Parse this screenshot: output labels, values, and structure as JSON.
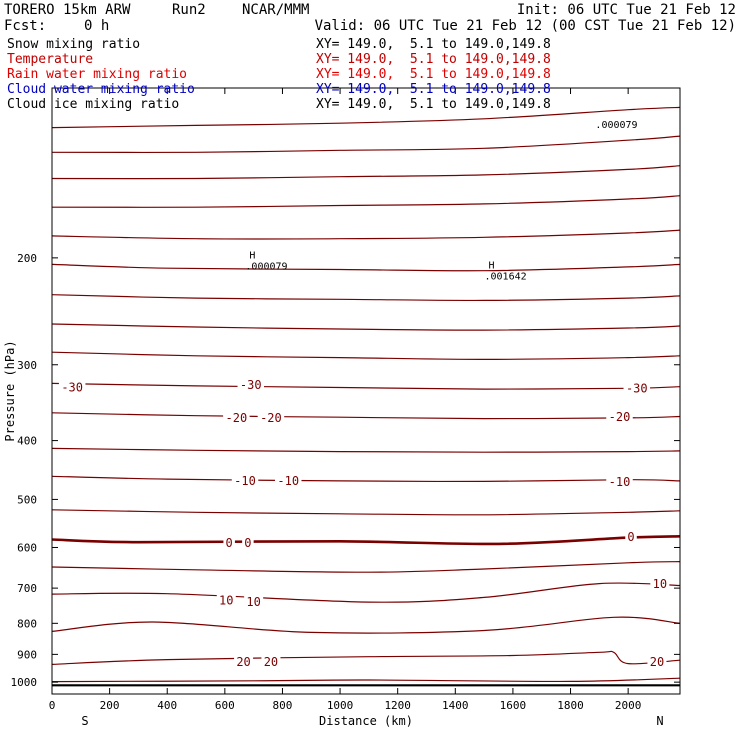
{
  "header": {
    "model": "TORERO 15km ARW",
    "run": "Run2",
    "org": "NCAR/MMM",
    "init": "Init: 06 UTC Tue 21 Feb 12",
    "fcst_label": "Fcst:",
    "fcst_value": "0 h",
    "valid": "Valid: 06 UTC Tue 21 Feb 12 (00 CST Tue 21 Feb 12)"
  },
  "legend": [
    {
      "name": "Snow mixing ratio",
      "xy": "XY= 149.0,  5.1 to 149.0,149.8",
      "color": "#000000"
    },
    {
      "name": "Temperature",
      "xy": "XY= 149.0,  5.1 to 149.0,149.8",
      "color": "#c00000"
    },
    {
      "name": "Rain water mixing ratio",
      "xy": "XY= 149.0,  5.1 to 149.0,149.8",
      "color": "#e00000"
    },
    {
      "name": "Cloud water mixing ratio",
      "xy": "XY= 149.0,  5.1 to 149.0,149.8",
      "color": "#0000c0"
    },
    {
      "name": "Cloud ice mixing ratio",
      "xy": "XY= 149.0,  5.1 to 149.0,149.8",
      "color": "#000000"
    }
  ],
  "colors": {
    "isotherm": "#7a0000",
    "frame": "#000000",
    "ground": "#000000"
  },
  "chart_data": {
    "type": "line",
    "xlabel": "Distance (km)",
    "ylabel": "Pressure (hPa)",
    "x_ticks": [
      0,
      200,
      400,
      600,
      800,
      1000,
      1200,
      1400,
      1600,
      1800,
      2000
    ],
    "y_ticks": [
      200,
      300,
      400,
      500,
      600,
      700,
      800,
      900,
      1000
    ],
    "xlim": [
      0,
      2180
    ],
    "ylim": [
      1046,
      105
    ],
    "y_scale": "log",
    "grid": false,
    "endpoint_labels": {
      "left": "S",
      "right": "N"
    },
    "isotherms": [
      {
        "x": [
          0,
          500,
          1000,
          1500,
          2000,
          2180
        ],
        "p": [
          122,
          121,
          120,
          118,
          114,
          113
        ]
      },
      {
        "x": [
          0,
          500,
          1000,
          1500,
          2000,
          2180
        ],
        "p": [
          134,
          134,
          133,
          132,
          128,
          126
        ]
      },
      {
        "x": [
          0,
          500,
          1000,
          1500,
          2000,
          2180
        ],
        "p": [
          148,
          148,
          147,
          146,
          143,
          141
        ]
      },
      {
        "x": [
          0,
          500,
          1000,
          1500,
          2000,
          2180
        ],
        "p": [
          165,
          165,
          164,
          163,
          160,
          158
        ]
      },
      {
        "x": [
          0,
          500,
          1000,
          1500,
          2000,
          2180
        ],
        "p": [
          184,
          186,
          186,
          185,
          182,
          180
        ]
      },
      {
        "x": [
          0,
          400,
          1000,
          1500,
          2000,
          2180
        ],
        "p": [
          205,
          208,
          209,
          210,
          207,
          205
        ]
      },
      {
        "x": [
          0,
          500,
          1000,
          1500,
          2000,
          2180
        ],
        "p": [
          230,
          233,
          234,
          235,
          233,
          231
        ]
      },
      {
        "x": [
          0,
          500,
          1000,
          1500,
          2000,
          2180
        ],
        "p": [
          257,
          260,
          262,
          263,
          261,
          259
        ]
      },
      {
        "x": [
          0,
          500,
          1000,
          1500,
          2000,
          2180
        ],
        "p": [
          286,
          290,
          292,
          294,
          292,
          290
        ]
      },
      {
        "x": [
          0,
          500,
          1000,
          1500,
          2000,
          2180
        ],
        "p": [
          322,
          325,
          327,
          329,
          328,
          326
        ]
      },
      {
        "x": [
          0,
          500,
          1000,
          1500,
          2000,
          2180
        ],
        "p": [
          360,
          364,
          366,
          368,
          367,
          365
        ]
      },
      {
        "x": [
          0,
          500,
          1000,
          1500,
          2000,
          2180
        ],
        "p": [
          412,
          415,
          417,
          418,
          417,
          416
        ]
      },
      {
        "x": [
          0,
          400,
          1000,
          1500,
          2000,
          2180
        ],
        "p": [
          458,
          463,
          466,
          467,
          464,
          466
        ]
      },
      {
        "x": [
          0,
          500,
          1000,
          1500,
          2000,
          2180
        ],
        "p": [
          520,
          525,
          528,
          530,
          525,
          522
        ]
      },
      {
        "x": [
          0,
          300,
          1000,
          1550,
          2000,
          2180
        ],
        "p": [
          582,
          588,
          586,
          592,
          578,
          575
        ]
      },
      {
        "x": [
          0,
          500,
          1100,
          1500,
          2000,
          2180
        ],
        "p": [
          646,
          653,
          659,
          651,
          636,
          633
        ]
      },
      {
        "x": [
          0,
          400,
          1100,
          1500,
          1900,
          2180
        ],
        "p": [
          716,
          715,
          738,
          725,
          688,
          693
        ]
      },
      {
        "x": [
          0,
          350,
          900,
          1500,
          1950,
          2180
        ],
        "p": [
          825,
          796,
          828,
          822,
          782,
          800
        ]
      },
      {
        "x": [
          0,
          400,
          1100,
          1600,
          1900,
          1950,
          2000,
          2180
        ],
        "p": [
          935,
          918,
          908,
          904,
          893,
          893,
          932,
          920
        ]
      },
      {
        "x": [
          0,
          700,
          1100,
          1800,
          2180
        ],
        "p": [
          998,
          995,
          992,
          997,
          985
        ]
      }
    ],
    "bold_isotherm_index": 14,
    "ground_p": 1012,
    "temp_labels": [
      {
        "text": "-30",
        "x": 70,
        "p": 327
      },
      {
        "text": "-30",
        "x": 690,
        "p": 324
      },
      {
        "text": "-30",
        "x": 2030,
        "p": 328
      },
      {
        "text": "-20",
        "x": 640,
        "p": 367
      },
      {
        "text": "-20",
        "x": 760,
        "p": 367
      },
      {
        "text": "-20",
        "x": 1970,
        "p": 366
      },
      {
        "text": "-10",
        "x": 670,
        "p": 466
      },
      {
        "text": "-10",
        "x": 820,
        "p": 466
      },
      {
        "text": "-10",
        "x": 1970,
        "p": 468
      },
      {
        "text": "0",
        "x": 615,
        "p": 590
      },
      {
        "text": "0",
        "x": 680,
        "p": 590
      },
      {
        "text": "0",
        "x": 2010,
        "p": 577
      },
      {
        "text": "10",
        "x": 605,
        "p": 734
      },
      {
        "text": "10",
        "x": 700,
        "p": 738
      },
      {
        "text": "10",
        "x": 2110,
        "p": 689
      },
      {
        "text": "20",
        "x": 665,
        "p": 927
      },
      {
        "text": "20",
        "x": 760,
        "p": 927
      },
      {
        "text": "20",
        "x": 2100,
        "p": 927
      }
    ],
    "max_labels": [
      {
        "mark": "H",
        "value": ".000079",
        "x": 720,
        "p": 202
      },
      {
        "mark": "H",
        "value": ".001642",
        "x": 1550,
        "p": 210
      },
      {
        "mark": "",
        "value": ".000079",
        "x": 1935,
        "p": 118
      }
    ]
  }
}
